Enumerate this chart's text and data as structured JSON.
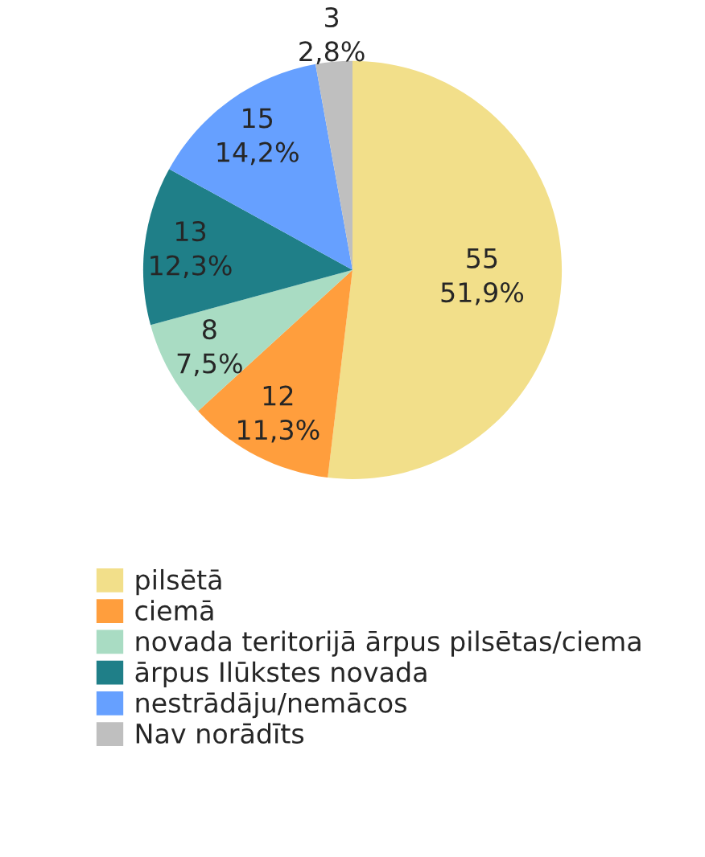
{
  "chart_data": {
    "type": "pie",
    "categories": [
      "pilsētā",
      "ciemā",
      "novada teritorijā ārpus pilsētas/ciema",
      "ārpus Ilūkstes novada",
      "nestrādāju/nemācos",
      "Nav norādīts"
    ],
    "values": [
      55,
      12,
      8,
      13,
      15,
      3
    ],
    "colors": [
      "#f2df8a",
      "#ff9e3d",
      "#a9dcc3",
      "#1f7f88",
      "#66a0ff",
      "#bfbfbf"
    ],
    "value_labels": [
      "55\n51,9%",
      "12\n11,3%",
      "8\n7,5%",
      "13\n12,3%",
      "15\n14,2%",
      "3\n2,8%"
    ],
    "legend": "bottom left"
  }
}
